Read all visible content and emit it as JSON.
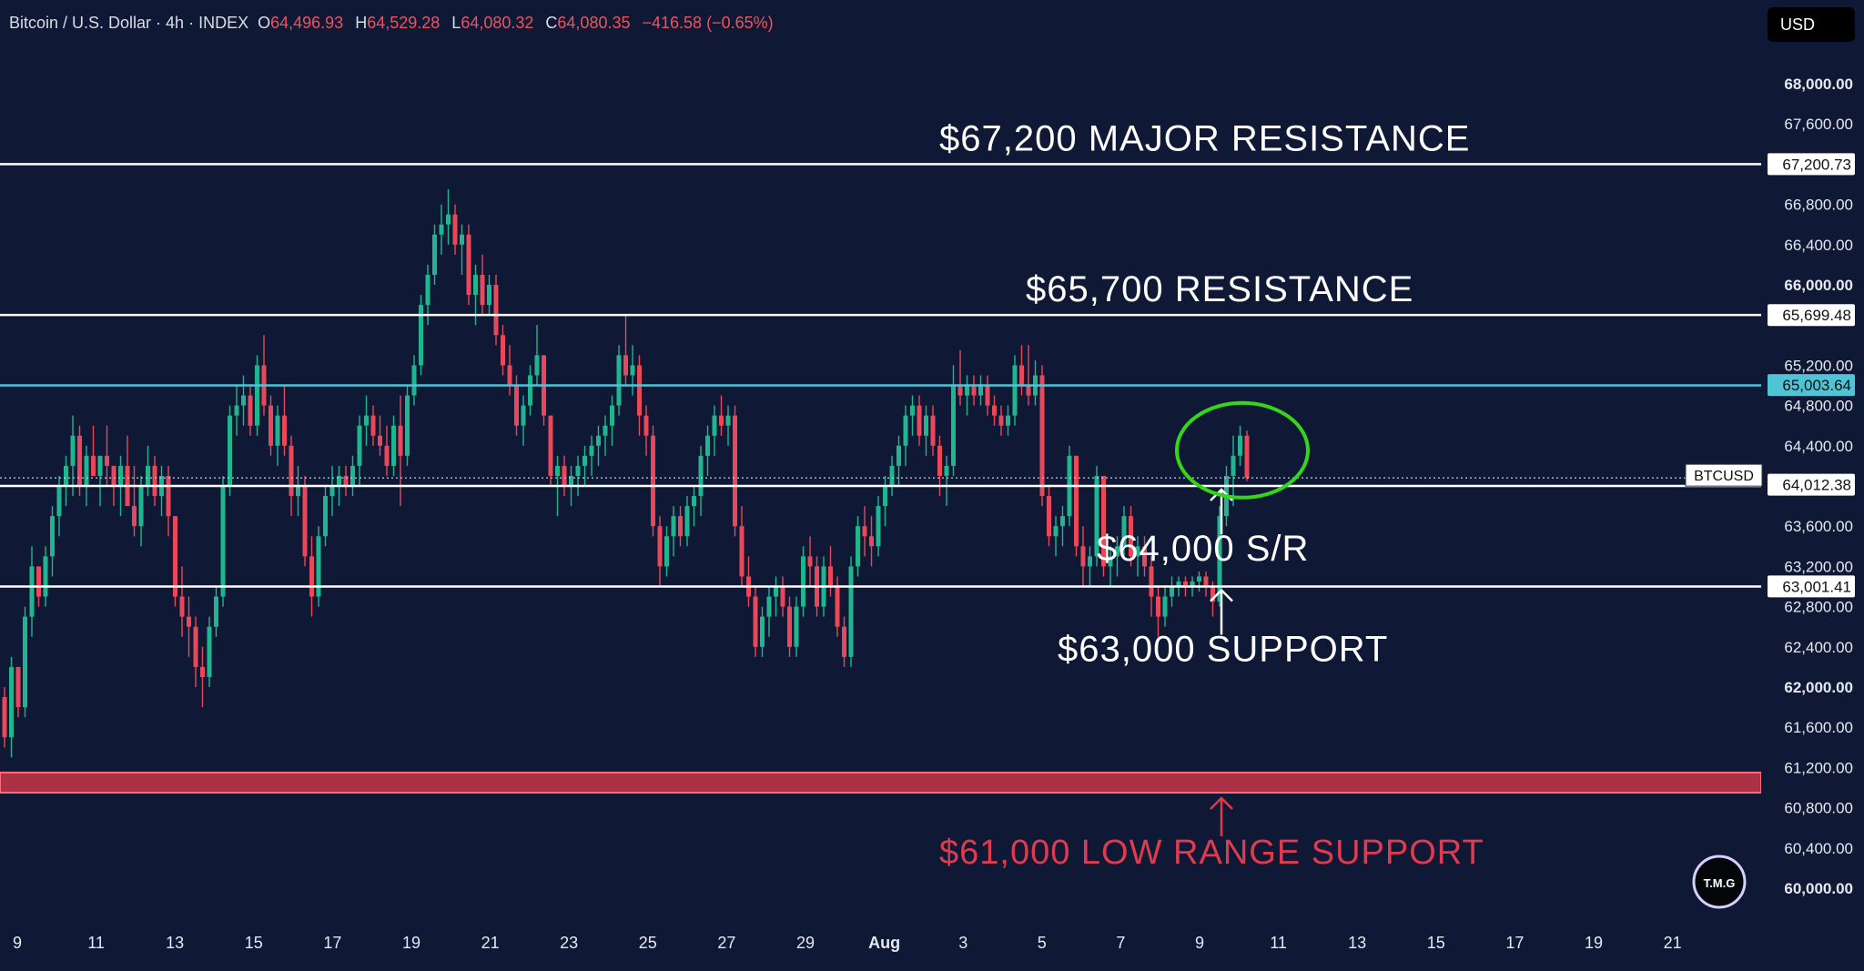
{
  "header": {
    "symbol": "Bitcoin / U.S. Dollar · 4h · INDEX",
    "open_label": "O",
    "open": "64,496.93",
    "high_label": "H",
    "high": "64,529.28",
    "low_label": "L",
    "low": "64,080.32",
    "close_label": "C",
    "close": "64,080.35",
    "change": "−416.58 (−0.65%)"
  },
  "currency_button": "USD",
  "watermark": "T.M.G",
  "colors": {
    "background": "#0f1935",
    "up": "#1fb58f",
    "down": "#e9485a",
    "level_line": "#ffffff",
    "resistance_cyan": "#4fc4d6",
    "low_support_red": "#e03a4e",
    "highlight_circle": "#35d61a"
  },
  "chart_data": {
    "type": "candlestick",
    "symbol": "BTCUSD",
    "timeframe": "4h",
    "y_axis": {
      "min": 59800,
      "max": 68200,
      "ticks": [
        "60,000.00",
        "60,400.00",
        "60,800.00",
        "61,200.00",
        "61,600.00",
        "62,000.00",
        "62,400.00",
        "62,800.00",
        "63,200.00",
        "63,600.00",
        "64,400.00",
        "64,800.00",
        "65,200.00",
        "66,000.00",
        "66,400.00",
        "66,800.00",
        "67,600.00",
        "68,000.00"
      ],
      "bold_ticks": [
        "60,000.00",
        "62,000.00",
        "66,000.00",
        "68,000.00"
      ]
    },
    "x_axis": {
      "ticks": [
        "9",
        "11",
        "13",
        "15",
        "17",
        "19",
        "21",
        "23",
        "25",
        "27",
        "29",
        "Aug",
        "3",
        "5",
        "7",
        "9",
        "11",
        "13",
        "15",
        "17",
        "19",
        "21"
      ],
      "bold_ticks": [
        "Aug"
      ]
    },
    "price_labels": [
      {
        "text": "67,200.73",
        "price": 67200.73,
        "style": "white"
      },
      {
        "text": "65,699.48",
        "price": 65699.48,
        "style": "white"
      },
      {
        "text": "65,003.64",
        "price": 65003.64,
        "style": "cyan"
      },
      {
        "text": "64,012.38",
        "price": 64012.38,
        "style": "white"
      },
      {
        "text": "63,001.41",
        "price": 63001.41,
        "style": "white"
      }
    ],
    "symbol_tag": "BTCUSD",
    "levels": [
      {
        "price": 67200,
        "label": "$67,200 MAJOR RESISTANCE",
        "color": "white"
      },
      {
        "price": 65700,
        "label": "$65,700 RESISTANCE",
        "color": "white"
      },
      {
        "price": 65000,
        "label": "",
        "color": "cyan"
      },
      {
        "price": 64000,
        "label": "$64,000 S/R",
        "color": "white",
        "arrow": "up-from-below"
      },
      {
        "price": 63000,
        "label": "$63,000 SUPPORT",
        "color": "white",
        "arrow": "up-from-below"
      },
      {
        "price_low": 60950,
        "price_high": 61150,
        "label": "$61,000 LOW RANGE SUPPORT",
        "color": "red",
        "arrow": "up-from-below"
      }
    ],
    "candles_ohlc": [
      [
        61900,
        62000,
        61400,
        61500
      ],
      [
        61500,
        62300,
        61300,
        62200
      ],
      [
        62200,
        62100,
        61700,
        61800
      ],
      [
        61800,
        62800,
        61700,
        62700
      ],
      [
        62700,
        63400,
        62500,
        63200
      ],
      [
        63200,
        63200,
        62800,
        62900
      ],
      [
        62900,
        63400,
        62800,
        63300
      ],
      [
        63300,
        63800,
        63100,
        63700
      ],
      [
        63700,
        64100,
        63500,
        64000
      ],
      [
        64000,
        64300,
        63800,
        64200
      ],
      [
        64200,
        64700,
        63900,
        64500
      ],
      [
        64500,
        64600,
        63900,
        64000
      ],
      [
        64000,
        64400,
        63800,
        64300
      ],
      [
        64300,
        64600,
        64100,
        64100
      ],
      [
        64100,
        64300,
        63800,
        64300
      ],
      [
        64300,
        64600,
        64000,
        64200
      ],
      [
        64200,
        64200,
        63800,
        64000
      ],
      [
        64000,
        64300,
        63700,
        64200
      ],
      [
        64200,
        64500,
        63900,
        63800
      ],
      [
        63800,
        64200,
        63500,
        63600
      ],
      [
        63600,
        64100,
        63400,
        64000
      ],
      [
        64000,
        64400,
        63900,
        64200
      ],
      [
        64200,
        64300,
        63800,
        63900
      ],
      [
        63900,
        64200,
        63700,
        64100
      ],
      [
        64100,
        64200,
        63500,
        63700
      ],
      [
        63700,
        63700,
        62800,
        62900
      ],
      [
        62900,
        63200,
        62500,
        62700
      ],
      [
        62700,
        62900,
        62300,
        62600
      ],
      [
        62600,
        62700,
        62000,
        62200
      ],
      [
        62200,
        62400,
        61800,
        62100
      ],
      [
        62100,
        62700,
        62000,
        62600
      ],
      [
        62600,
        63000,
        62500,
        62900
      ],
      [
        62900,
        64100,
        62800,
        64000
      ],
      [
        64000,
        64800,
        63900,
        64700
      ],
      [
        64700,
        65000,
        64500,
        64800
      ],
      [
        64800,
        65100,
        64600,
        64900
      ],
      [
        64900,
        65000,
        64500,
        64600
      ],
      [
        64600,
        65300,
        64500,
        65200
      ],
      [
        65200,
        65500,
        64700,
        64800
      ],
      [
        64800,
        64900,
        64300,
        64400
      ],
      [
        64400,
        64800,
        64200,
        64700
      ],
      [
        64700,
        65000,
        64300,
        64400
      ],
      [
        64400,
        64500,
        63700,
        63900
      ],
      [
        63900,
        64200,
        63700,
        64000
      ],
      [
        64000,
        64100,
        63200,
        63300
      ],
      [
        63300,
        63500,
        62700,
        62900
      ],
      [
        62900,
        63600,
        62800,
        63500
      ],
      [
        63500,
        64000,
        63400,
        63900
      ],
      [
        63900,
        64200,
        63700,
        64000
      ],
      [
        64000,
        64200,
        63800,
        64100
      ],
      [
        64100,
        64200,
        63900,
        64000
      ],
      [
        64000,
        64300,
        63900,
        64200
      ],
      [
        64200,
        64700,
        64000,
        64600
      ],
      [
        64600,
        64900,
        64400,
        64700
      ],
      [
        64700,
        64800,
        64400,
        64500
      ],
      [
        64500,
        64700,
        64300,
        64400
      ],
      [
        64400,
        64600,
        64100,
        64200
      ],
      [
        64200,
        64700,
        64100,
        64600
      ],
      [
        64600,
        64900,
        63800,
        64300
      ],
      [
        64300,
        65000,
        64200,
        64900
      ],
      [
        64900,
        65300,
        64800,
        65200
      ],
      [
        65200,
        65900,
        65100,
        65800
      ],
      [
        65800,
        66200,
        65600,
        66100
      ],
      [
        66100,
        66600,
        66000,
        66500
      ],
      [
        66500,
        66800,
        66300,
        66600
      ],
      [
        66600,
        66950,
        66400,
        66700
      ],
      [
        66700,
        66800,
        66300,
        66400
      ],
      [
        66400,
        66600,
        66100,
        66500
      ],
      [
        66500,
        66600,
        65800,
        65900
      ],
      [
        65900,
        66200,
        65600,
        66100
      ],
      [
        66100,
        66300,
        65700,
        65800
      ],
      [
        65800,
        66100,
        65700,
        66000
      ],
      [
        66000,
        66100,
        65400,
        65500
      ],
      [
        65500,
        65600,
        65100,
        65200
      ],
      [
        65200,
        65400,
        64900,
        65000
      ],
      [
        65000,
        65100,
        64500,
        64600
      ],
      [
        64600,
        64900,
        64400,
        64800
      ],
      [
        64800,
        65200,
        64700,
        65100
      ],
      [
        65100,
        65600,
        65000,
        65300
      ],
      [
        65300,
        65300,
        64600,
        64700
      ],
      [
        64700,
        64700,
        64000,
        64100
      ],
      [
        64100,
        64300,
        63700,
        64200
      ],
      [
        64200,
        64300,
        63900,
        64000
      ],
      [
        64000,
        64200,
        63800,
        64100
      ],
      [
        64100,
        64300,
        63900,
        64200
      ],
      [
        64200,
        64400,
        64000,
        64300
      ],
      [
        64300,
        64500,
        64100,
        64400
      ],
      [
        64400,
        64600,
        64200,
        64500
      ],
      [
        64500,
        64700,
        64300,
        64600
      ],
      [
        64600,
        64900,
        64400,
        64800
      ],
      [
        64800,
        65400,
        64700,
        65300
      ],
      [
        65300,
        65700,
        65000,
        65100
      ],
      [
        65100,
        65400,
        64900,
        65200
      ],
      [
        65200,
        65300,
        64500,
        64700
      ],
      [
        64700,
        64800,
        64300,
        64500
      ],
      [
        64500,
        64600,
        63500,
        63600
      ],
      [
        63600,
        63700,
        63000,
        63200
      ],
      [
        63200,
        63600,
        63100,
        63500
      ],
      [
        63500,
        63800,
        63300,
        63700
      ],
      [
        63700,
        63800,
        63400,
        63500
      ],
      [
        63500,
        63900,
        63400,
        63800
      ],
      [
        63800,
        64000,
        63600,
        63900
      ],
      [
        63900,
        64400,
        63700,
        64300
      ],
      [
        64300,
        64600,
        64100,
        64500
      ],
      [
        64500,
        64800,
        64300,
        64700
      ],
      [
        64700,
        64900,
        64500,
        64600
      ],
      [
        64600,
        64800,
        64400,
        64700
      ],
      [
        64700,
        64800,
        63500,
        63600
      ],
      [
        63600,
        63800,
        63000,
        63100
      ],
      [
        63100,
        63300,
        62800,
        62900
      ],
      [
        62900,
        63000,
        62300,
        62400
      ],
      [
        62400,
        62800,
        62300,
        62700
      ],
      [
        62700,
        63000,
        62500,
        62900
      ],
      [
        62900,
        63100,
        62700,
        63000
      ],
      [
        63000,
        63100,
        62700,
        62800
      ],
      [
        62800,
        62900,
        62300,
        62400
      ],
      [
        62400,
        62900,
        62300,
        62800
      ],
      [
        62800,
        63400,
        62700,
        63300
      ],
      [
        63300,
        63500,
        63000,
        63200
      ],
      [
        63200,
        63300,
        62700,
        62800
      ],
      [
        62800,
        63300,
        62700,
        63200
      ],
      [
        63200,
        63400,
        62900,
        63000
      ],
      [
        63000,
        63100,
        62500,
        62600
      ],
      [
        62600,
        62700,
        62200,
        62300
      ],
      [
        62300,
        63300,
        62200,
        63200
      ],
      [
        63200,
        63700,
        63100,
        63600
      ],
      [
        63600,
        63800,
        63300,
        63500
      ],
      [
        63500,
        63700,
        63200,
        63400
      ],
      [
        63400,
        63900,
        63300,
        63800
      ],
      [
        63800,
        64100,
        63600,
        64000
      ],
      [
        64000,
        64300,
        63900,
        64200
      ],
      [
        64200,
        64500,
        64000,
        64400
      ],
      [
        64400,
        64800,
        64200,
        64700
      ],
      [
        64700,
        64900,
        64500,
        64800
      ],
      [
        64800,
        64900,
        64400,
        64500
      ],
      [
        64500,
        64800,
        64300,
        64700
      ],
      [
        64700,
        64800,
        64300,
        64400
      ],
      [
        64400,
        64500,
        63900,
        64100
      ],
      [
        64100,
        64300,
        63800,
        64200
      ],
      [
        64200,
        65200,
        64100,
        65000
      ],
      [
        65000,
        65350,
        64800,
        64900
      ],
      [
        64900,
        65100,
        64700,
        65000
      ],
      [
        65000,
        65100,
        64800,
        64900
      ],
      [
        64900,
        65100,
        64800,
        65000
      ],
      [
        65000,
        65100,
        64700,
        64800
      ],
      [
        64800,
        64900,
        64600,
        64700
      ],
      [
        64700,
        64800,
        64500,
        64600
      ],
      [
        64600,
        64800,
        64500,
        64700
      ],
      [
        64700,
        65300,
        64600,
        65200
      ],
      [
        65200,
        65400,
        64900,
        65000
      ],
      [
        65000,
        65400,
        64800,
        64900
      ],
      [
        64900,
        65250,
        64800,
        65100
      ],
      [
        65100,
        65200,
        63800,
        63900
      ],
      [
        63900,
        64000,
        63400,
        63500
      ],
      [
        63500,
        63700,
        63300,
        63600
      ],
      [
        63600,
        63800,
        63400,
        63700
      ],
      [
        63700,
        64400,
        63600,
        64300
      ],
      [
        64300,
        64300,
        63300,
        63400
      ],
      [
        63400,
        63600,
        63000,
        63200
      ],
      [
        63200,
        63400,
        63000,
        63300
      ],
      [
        63300,
        64200,
        63200,
        64100
      ],
      [
        64100,
        64100,
        63100,
        63200
      ],
      [
        63200,
        63400,
        63000,
        63300
      ],
      [
        63300,
        63500,
        63100,
        63400
      ],
      [
        63400,
        63800,
        63300,
        63700
      ],
      [
        63700,
        63800,
        63200,
        63300
      ],
      [
        63300,
        63500,
        63100,
        63400
      ],
      [
        63400,
        63500,
        63100,
        63200
      ],
      [
        63200,
        63300,
        62700,
        62900
      ],
      [
        62900,
        63000,
        62500,
        62700
      ],
      [
        62700,
        63000,
        62600,
        62900
      ],
      [
        62900,
        63100,
        62800,
        63000
      ],
      [
        63000,
        63100,
        62900,
        63050
      ],
      [
        63050,
        63100,
        62900,
        63000
      ],
      [
        63000,
        63100,
        62900,
        63050
      ],
      [
        63050,
        63150,
        62950,
        63100
      ],
      [
        63100,
        63150,
        62900,
        63000
      ],
      [
        63000,
        63050,
        62700,
        62850
      ],
      [
        62850,
        63800,
        62800,
        63700
      ],
      [
        63700,
        64200,
        63600,
        64100
      ],
      [
        64100,
        64500,
        63800,
        64300
      ],
      [
        64300,
        64600,
        64200,
        64500
      ],
      [
        64500,
        64550,
        64050,
        64080
      ]
    ]
  }
}
